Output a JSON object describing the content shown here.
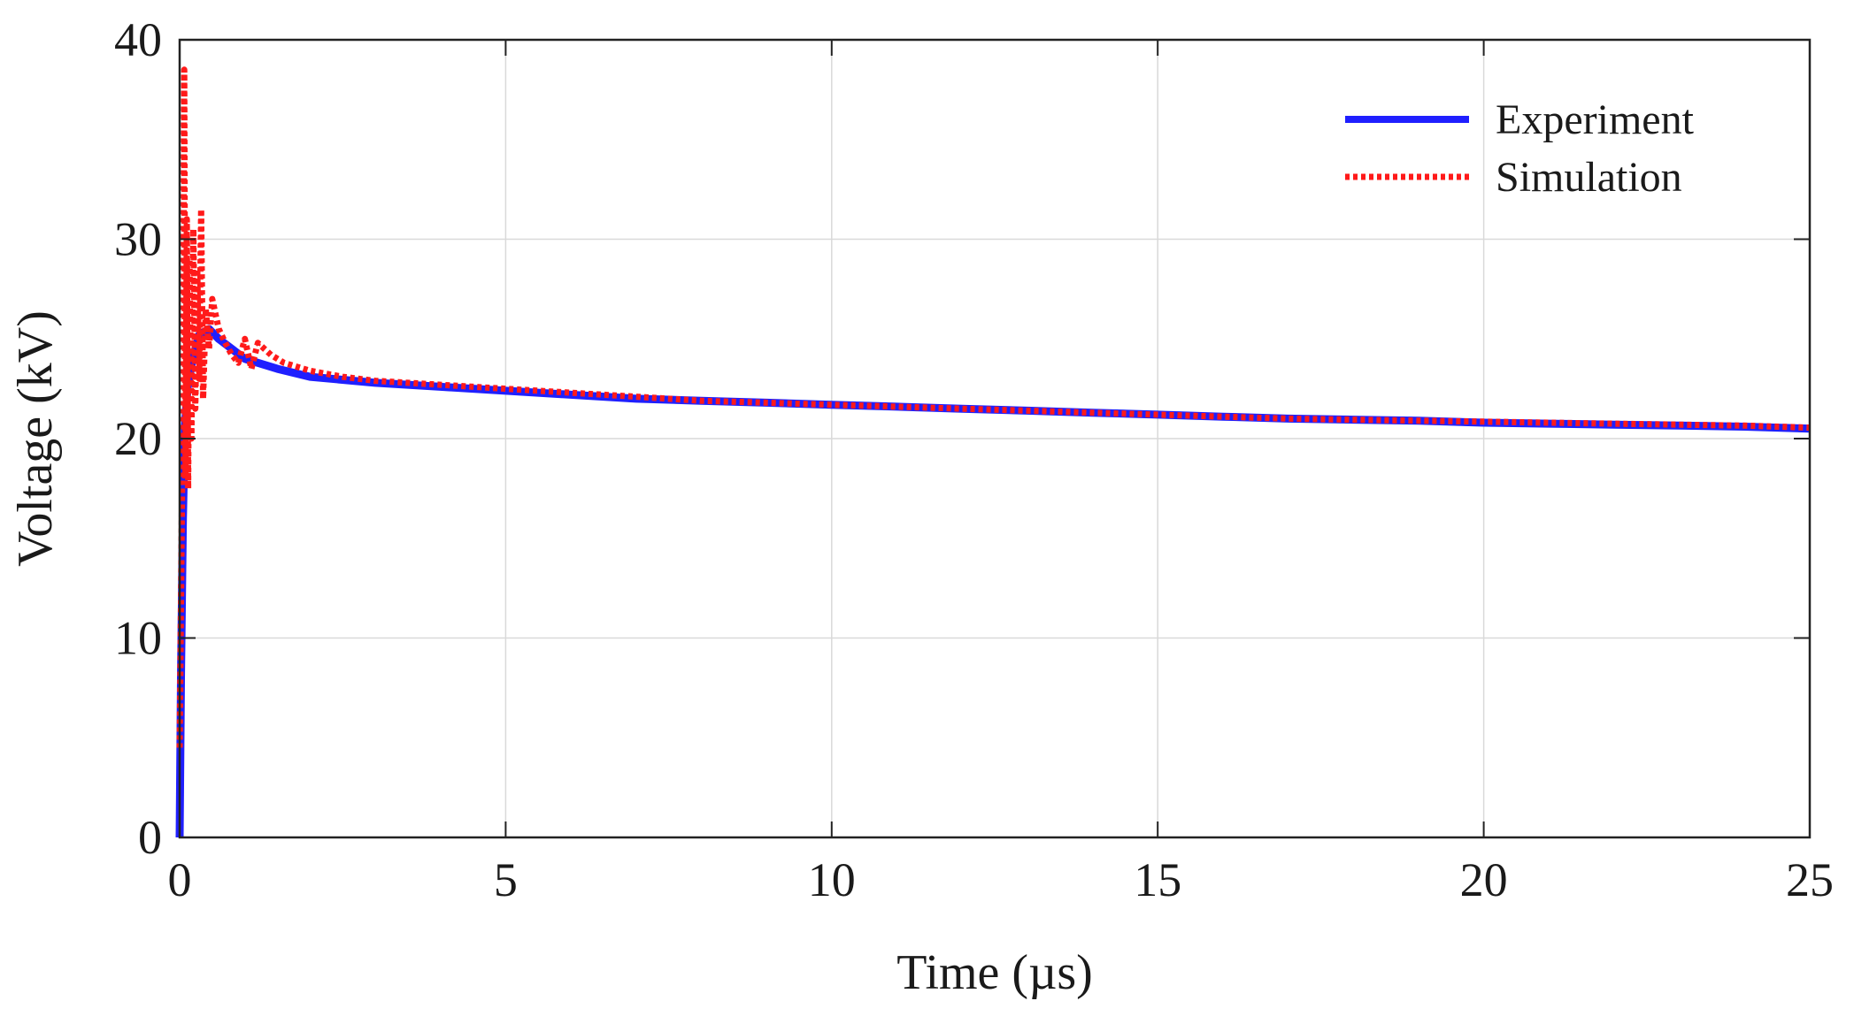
{
  "chart_data": {
    "type": "line",
    "xlabel": "Time (µs)",
    "ylabel": "Voltage (kV)",
    "xlim": [
      0,
      25
    ],
    "ylim": [
      0,
      40
    ],
    "xticks": [
      "0",
      "5",
      "10",
      "15",
      "20",
      "25"
    ],
    "yticks": [
      "0",
      "10",
      "20",
      "30",
      "40"
    ],
    "grid": true,
    "legend_position": "top-right",
    "series": [
      {
        "name": "Experiment",
        "color": "#1f1fff",
        "style": "solid",
        "x": [
          0,
          0.02,
          0.05,
          0.08,
          0.12,
          0.2,
          0.3,
          0.45,
          0.6,
          0.8,
          1.0,
          1.5,
          2,
          3,
          4,
          5,
          6,
          7,
          8,
          9,
          10,
          11,
          12,
          13,
          14,
          15,
          16,
          17,
          18,
          19,
          20,
          21,
          22,
          23,
          24,
          25
        ],
        "y": [
          0,
          8,
          16,
          20.5,
          22.5,
          24,
          25.2,
          25.5,
          25,
          24.5,
          24,
          23.5,
          23.1,
          22.8,
          22.6,
          22.4,
          22.2,
          22.0,
          21.9,
          21.8,
          21.7,
          21.6,
          21.5,
          21.4,
          21.3,
          21.2,
          21.1,
          21.0,
          20.95,
          20.9,
          20.8,
          20.75,
          20.7,
          20.65,
          20.6,
          20.5
        ]
      },
      {
        "name": "Simulation",
        "color": "#ff1a1a",
        "style": "dotted",
        "x": [
          0,
          0.03,
          0.05,
          0.07,
          0.09,
          0.11,
          0.13,
          0.15,
          0.18,
          0.21,
          0.24,
          0.27,
          0.3,
          0.33,
          0.36,
          0.4,
          0.45,
          0.5,
          0.6,
          0.7,
          0.8,
          0.9,
          1.0,
          1.1,
          1.2,
          1.4,
          1.6,
          1.8,
          2.0,
          2.5,
          3,
          4,
          5,
          6,
          7,
          8,
          9,
          10,
          11,
          12,
          13,
          14,
          15,
          16,
          17,
          18,
          19,
          20,
          21,
          22,
          23,
          24,
          25
        ],
        "y": [
          4.5,
          15,
          22,
          38.5,
          18,
          31,
          17.5,
          29,
          20,
          30.5,
          21.5,
          28.5,
          23,
          31.5,
          22,
          26.5,
          24.5,
          27,
          25.5,
          24.8,
          24.2,
          23.8,
          25,
          23.5,
          24.8,
          24.2,
          23.8,
          23.6,
          23.4,
          23.1,
          22.9,
          22.7,
          22.5,
          22.3,
          22.1,
          21.9,
          21.8,
          21.7,
          21.6,
          21.5,
          21.4,
          21.3,
          21.2,
          21.1,
          21.0,
          20.95,
          20.9,
          20.85,
          20.8,
          20.75,
          20.7,
          20.65,
          20.55
        ]
      }
    ]
  }
}
